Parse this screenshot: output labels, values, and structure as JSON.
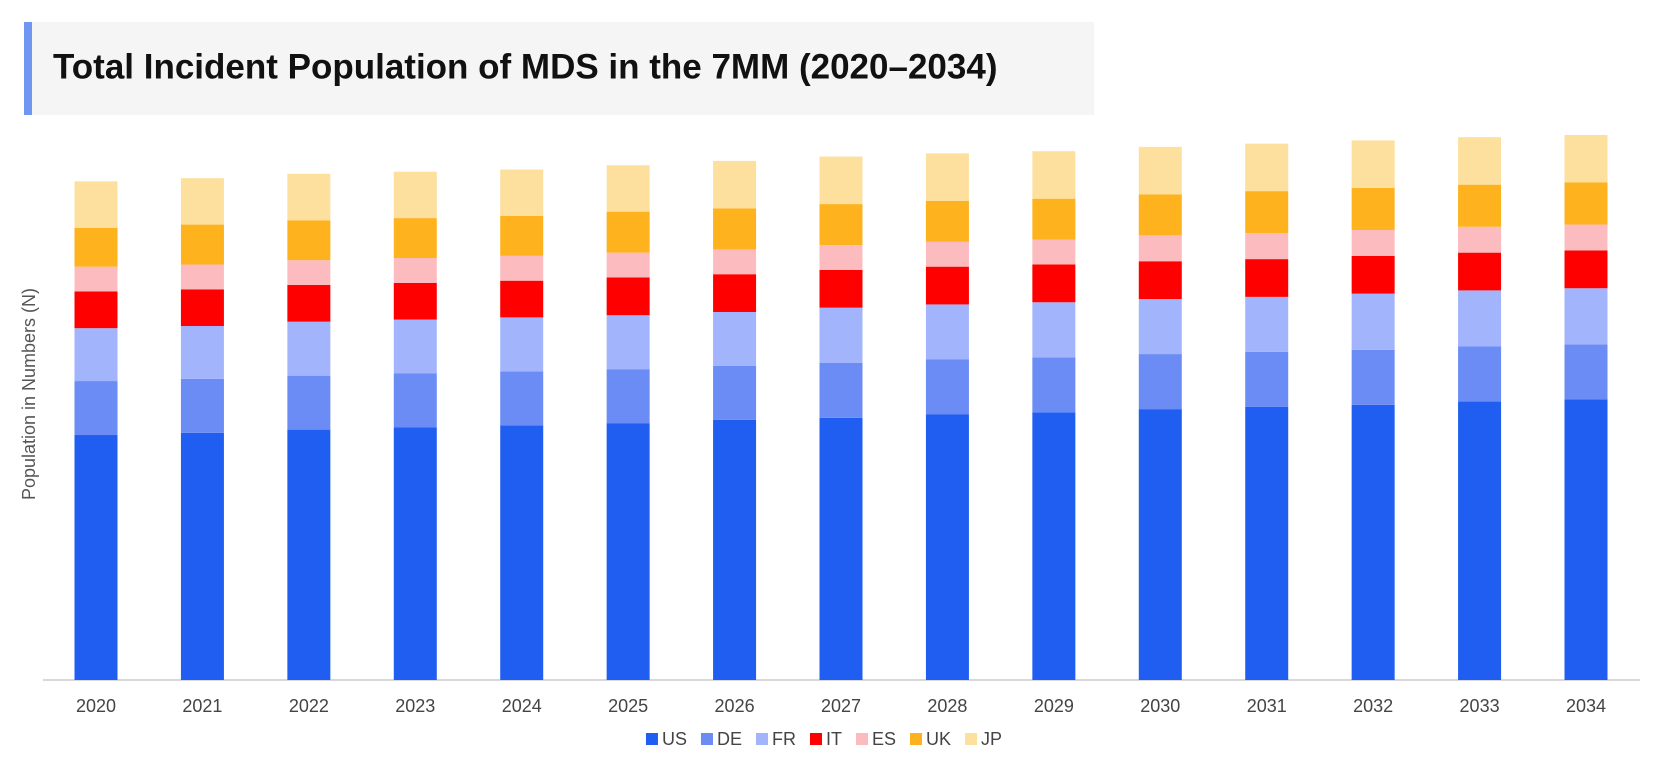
{
  "chart_data": {
    "type": "stacked-bar",
    "title": "Total Incident Population of MDS in the 7MM (2020–2034)",
    "y_label": "Population in Numbers (N)",
    "categories": [
      "2020",
      "2021",
      "2022",
      "2023",
      "2024",
      "2025",
      "2026",
      "2027",
      "2028",
      "2029",
      "2030",
      "2031",
      "2032",
      "2033",
      "2034"
    ],
    "series": [
      {
        "name": "US",
        "color": "#1f5ef0",
        "values": [
          227,
          229,
          232,
          234,
          236,
          238,
          241,
          243,
          246,
          248,
          251,
          253,
          255,
          258,
          260
        ]
      },
      {
        "name": "DE",
        "color": "#6b8bf5",
        "values": [
          50,
          50,
          50,
          50,
          50,
          50,
          50,
          51,
          51,
          51,
          51,
          51,
          51,
          51,
          51
        ]
      },
      {
        "name": "FR",
        "color": "#a2b4fc",
        "values": [
          49,
          49,
          50,
          50,
          50,
          50,
          50,
          51,
          51,
          51,
          51,
          51,
          52,
          52,
          52
        ]
      },
      {
        "name": "IT",
        "color": "#ff0000",
        "values": [
          34,
          34,
          34,
          34,
          34,
          35,
          35,
          35,
          35,
          35,
          35,
          35,
          35,
          35,
          35
        ]
      },
      {
        "name": "ES",
        "color": "#fcbcbf",
        "values": [
          23,
          23,
          23,
          23,
          23,
          23,
          23,
          23,
          23,
          23,
          24,
          24,
          24,
          24,
          24
        ]
      },
      {
        "name": "UK",
        "color": "#fdb21e",
        "values": [
          36,
          37,
          37,
          37,
          37,
          38,
          38,
          38,
          38,
          38,
          38,
          39,
          39,
          39,
          39
        ]
      },
      {
        "name": "JP",
        "color": "#fde09d",
        "values": [
          43,
          43,
          43,
          43,
          43,
          43,
          44,
          44,
          44,
          44,
          44,
          44,
          44,
          44,
          44
        ]
      }
    ],
    "ylim": [
      0,
      505
    ]
  }
}
